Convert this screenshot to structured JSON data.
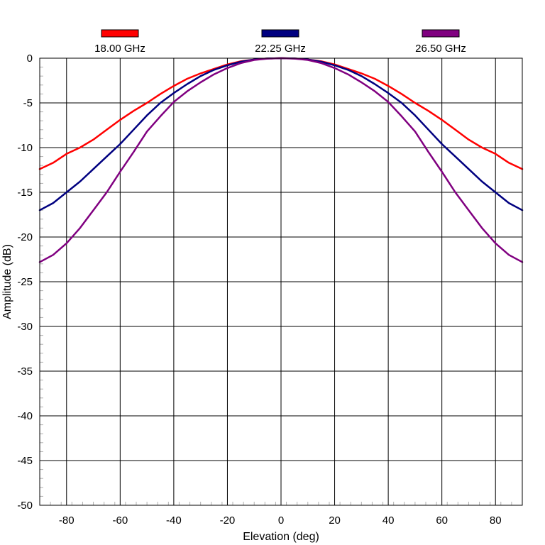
{
  "chart_data": {
    "type": "line",
    "title": "",
    "xlabel": "Elevation (deg)",
    "ylabel": "Amplitude (dB)",
    "xlim": [
      -90,
      90
    ],
    "ylim": [
      -50,
      0
    ],
    "x_ticks": [
      -80,
      -60,
      -40,
      -20,
      0,
      20,
      40,
      60,
      80
    ],
    "y_ticks": [
      0,
      -5,
      -10,
      -15,
      -20,
      -25,
      -30,
      -35,
      -40,
      -45,
      -50
    ],
    "grid": true,
    "legend_placement": "top",
    "x": [
      -90,
      -85,
      -80,
      -75,
      -70,
      -65,
      -60,
      -55,
      -50,
      -45,
      -40,
      -35,
      -30,
      -25,
      -20,
      -15,
      -10,
      -5,
      0,
      5,
      10,
      15,
      20,
      25,
      30,
      35,
      40,
      45,
      50,
      55,
      60,
      65,
      70,
      75,
      80,
      85,
      90
    ],
    "series": [
      {
        "name": "18.00 GHz",
        "color": "#ff0000",
        "values": [
          -12.4,
          -11.7,
          -10.7,
          -10.0,
          -9.1,
          -8.0,
          -6.9,
          -5.9,
          -5.0,
          -4.0,
          -3.1,
          -2.3,
          -1.7,
          -1.2,
          -0.7,
          -0.35,
          -0.15,
          -0.03,
          0,
          -0.03,
          -0.15,
          -0.35,
          -0.7,
          -1.2,
          -1.7,
          -2.3,
          -3.1,
          -4.0,
          -5.0,
          -5.9,
          -6.9,
          -8.0,
          -9.1,
          -10.0,
          -10.7,
          -11.7,
          -12.4
        ]
      },
      {
        "name": "22.25 GHz",
        "color": "#000080",
        "values": [
          -17.0,
          -16.2,
          -15.0,
          -13.8,
          -12.4,
          -11.0,
          -9.6,
          -8.0,
          -6.4,
          -5.0,
          -3.9,
          -2.9,
          -2.0,
          -1.3,
          -0.8,
          -0.4,
          -0.15,
          -0.03,
          0,
          -0.03,
          -0.15,
          -0.4,
          -0.8,
          -1.3,
          -2.0,
          -2.9,
          -3.9,
          -5.0,
          -6.4,
          -8.0,
          -9.6,
          -11.0,
          -12.4,
          -13.8,
          -15.0,
          -16.2,
          -17.0
        ]
      },
      {
        "name": "26.50 GHz",
        "color": "#800080",
        "values": [
          -22.8,
          -22.0,
          -20.7,
          -19.0,
          -17.0,
          -15.0,
          -12.7,
          -10.5,
          -8.2,
          -6.5,
          -4.9,
          -3.7,
          -2.7,
          -1.8,
          -1.1,
          -0.55,
          -0.2,
          -0.05,
          0,
          -0.05,
          -0.2,
          -0.55,
          -1.1,
          -1.8,
          -2.7,
          -3.7,
          -4.9,
          -6.5,
          -8.2,
          -10.5,
          -12.7,
          -15.0,
          -17.0,
          -19.0,
          -20.7,
          -22.0,
          -22.8
        ]
      }
    ]
  }
}
